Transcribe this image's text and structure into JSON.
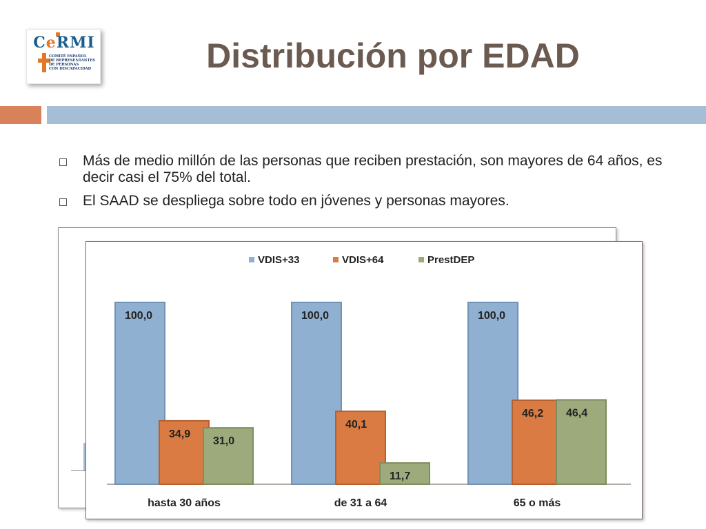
{
  "logo": {
    "word": "CERMI",
    "lines": [
      "COMITÉ ESPAÑOL",
      "DE REPRESENTANTES",
      "DE PERSONAS",
      "CON DISCAPACIDAD"
    ]
  },
  "title": "Distribución por EDAD",
  "bullets": [
    "Más de medio millón de las personas que reciben prestación, son mayores de 64 años, es decir casi el 75% del total.",
    "El SAAD se despliega sobre todo en jóvenes y personas mayores."
  ],
  "colors": {
    "VDIS+33": "#8fb0d0",
    "VDIS+64": "#d97b43",
    "PrestDEP": "#9daa7c",
    "title": "#6b5a4f",
    "band_orange": "#d9825a",
    "band_blue": "#a6bdd6"
  },
  "chart_data": {
    "type": "bar",
    "categories": [
      "hasta 30 años",
      "de 31 a 64",
      "65 o más"
    ],
    "series": [
      {
        "name": "VDIS+33",
        "values": [
          100.0,
          100.0,
          100.0
        ],
        "labels": [
          "100,0",
          "100,0",
          "100,0"
        ]
      },
      {
        "name": "VDIS+64",
        "values": [
          34.9,
          40.1,
          46.2
        ],
        "labels": [
          "34,9",
          "40,1",
          "46,2"
        ]
      },
      {
        "name": "PrestDEP",
        "values": [
          31.0,
          11.7,
          46.4
        ],
        "labels": [
          "31,0",
          "11,7",
          "46,4"
        ]
      }
    ],
    "ylim": [
      0,
      100
    ],
    "legend_position": "top",
    "grid": false
  }
}
